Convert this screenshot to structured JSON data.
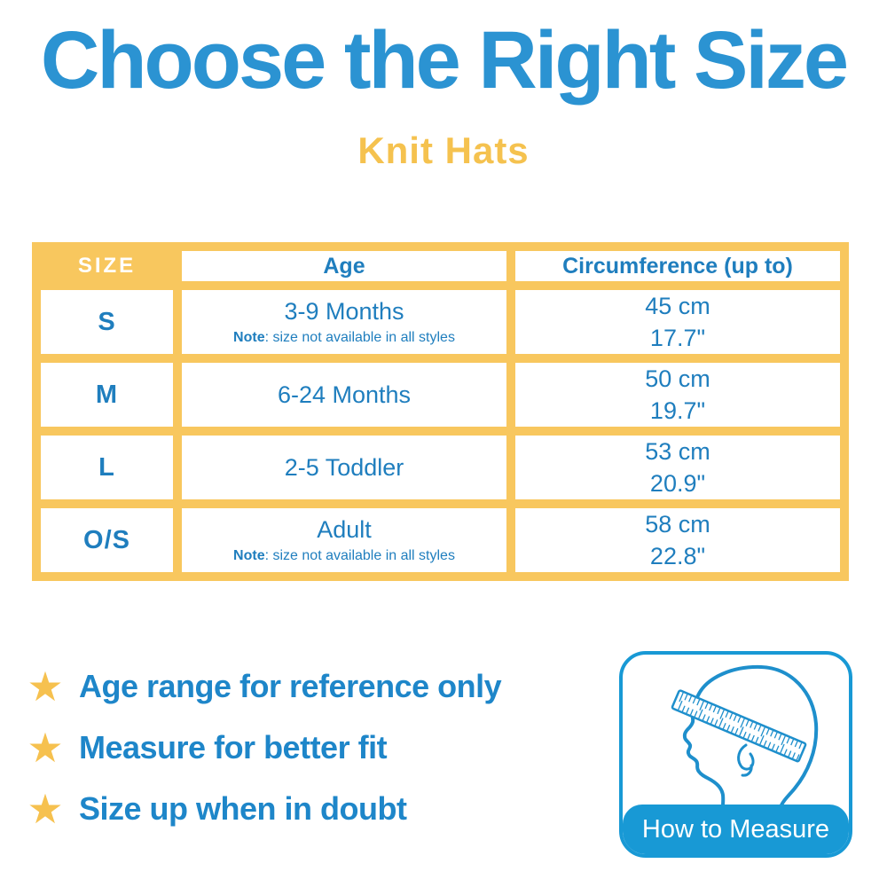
{
  "header": {
    "title": "Choose the Right Size",
    "subtitle": "Knit Hats"
  },
  "colors": {
    "title_blue": "#2B93D2",
    "table_text_blue": "#1F7EBE",
    "table_yellow": "#F8C75E",
    "star_yellow": "#F6C14F",
    "note_text_blue": "#1E86C9",
    "measure_blue": "#1899D5"
  },
  "size_table": {
    "headers": {
      "size": "SIZE",
      "age": "Age",
      "circumference": "Circumference (up to)"
    },
    "note_label": "Note",
    "rows": [
      {
        "size": "S",
        "age": "3-9 Months",
        "note_label": "Note",
        "note_rest": ": size not available in all styles",
        "cm": "45 cm",
        "inches": "17.7\""
      },
      {
        "size": "M",
        "age": "6-24 Months",
        "cm": "50 cm",
        "inches": "19.7\""
      },
      {
        "size": "L",
        "age": "2-5 Toddler",
        "cm": "53 cm",
        "inches": "20.9\""
      },
      {
        "size": "O/S",
        "age": "Adult",
        "note_label": "Note",
        "note_rest": ": size not available in all styles",
        "cm": "58 cm",
        "inches": "22.8\""
      }
    ]
  },
  "notes": {
    "bullet_icon": "star-icon",
    "star_glyph": "★",
    "items": [
      "Age range for reference only",
      "Measure for better fit",
      "Size up when in doubt"
    ]
  },
  "measure_card": {
    "label": "How to Measure",
    "illustration": "head-profile-with-measuring-tape"
  }
}
